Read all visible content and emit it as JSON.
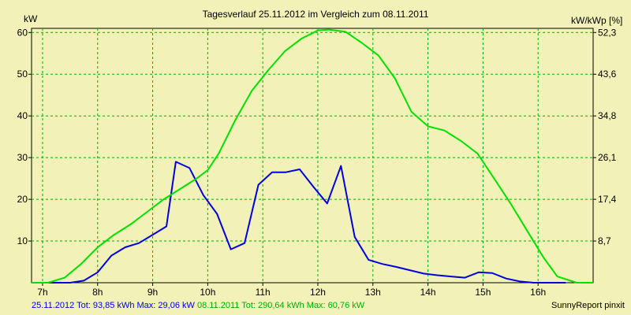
{
  "chart_data": {
    "type": "line",
    "title": "Tagesverlauf 25.11.2012 im Vergleich zum 08.11.2011",
    "y_left_label": "kW",
    "y_right_label": "kW/kWp [%]",
    "x_ticks": [
      "7h",
      "8h",
      "9h",
      "10h",
      "11h",
      "12h",
      "13h",
      "14h",
      "15h",
      "16h"
    ],
    "x_tick_values": [
      7,
      8,
      9,
      10,
      11,
      12,
      13,
      14,
      15,
      16
    ],
    "xlim": [
      6.8,
      17.0
    ],
    "ylim": [
      0,
      61
    ],
    "y_left_ticks": [
      10,
      20,
      30,
      40,
      50,
      60
    ],
    "y_right_ticks": [
      "8,7",
      "17,4",
      "26,1",
      "34,8",
      "43,6",
      "52,3"
    ],
    "y_right_tick_positions_kw": [
      10,
      20,
      30,
      40,
      50,
      60
    ],
    "grid": true,
    "series": [
      {
        "name": "25.11.2012",
        "color": "#0000dd",
        "points": [
          [
            7.0,
            0
          ],
          [
            7.25,
            0
          ],
          [
            7.5,
            0
          ],
          [
            7.75,
            0.5
          ],
          [
            8.0,
            2.5
          ],
          [
            8.25,
            6.5
          ],
          [
            8.5,
            8.5
          ],
          [
            8.75,
            9.5
          ],
          [
            9.0,
            11.5
          ],
          [
            9.25,
            13.5
          ],
          [
            9.42,
            29
          ],
          [
            9.67,
            27.5
          ],
          [
            9.92,
            21
          ],
          [
            10.17,
            16.5
          ],
          [
            10.42,
            8
          ],
          [
            10.67,
            9.5
          ],
          [
            10.92,
            23.5
          ],
          [
            11.17,
            26.5
          ],
          [
            11.42,
            26.5
          ],
          [
            11.67,
            27.2
          ],
          [
            11.92,
            23
          ],
          [
            12.17,
            19
          ],
          [
            12.42,
            28
          ],
          [
            12.67,
            11
          ],
          [
            12.92,
            5.5
          ],
          [
            13.17,
            4.5
          ],
          [
            13.42,
            3.8
          ],
          [
            13.67,
            3.0
          ],
          [
            13.92,
            2.2
          ],
          [
            14.17,
            1.8
          ],
          [
            14.42,
            1.5
          ],
          [
            14.67,
            1.2
          ],
          [
            14.92,
            2.5
          ],
          [
            15.17,
            2.3
          ],
          [
            15.42,
            1.0
          ],
          [
            15.67,
            0.3
          ],
          [
            15.92,
            0
          ],
          [
            16.5,
            0
          ]
        ]
      },
      {
        "name": "08.11.2011",
        "color": "#00e000",
        "points": [
          [
            6.8,
            0
          ],
          [
            7.1,
            0
          ],
          [
            7.4,
            1.2
          ],
          [
            7.7,
            4.5
          ],
          [
            8.0,
            8.5
          ],
          [
            8.3,
            11.5
          ],
          [
            8.6,
            14
          ],
          [
            8.9,
            17
          ],
          [
            9.2,
            20
          ],
          [
            9.5,
            22.5
          ],
          [
            9.8,
            25
          ],
          [
            10.0,
            27
          ],
          [
            10.2,
            31
          ],
          [
            10.5,
            39
          ],
          [
            10.8,
            46
          ],
          [
            11.1,
            51
          ],
          [
            11.4,
            55.5
          ],
          [
            11.7,
            58.5
          ],
          [
            12.0,
            60.5
          ],
          [
            12.2,
            60.7
          ],
          [
            12.5,
            60.2
          ],
          [
            12.8,
            57.5
          ],
          [
            13.1,
            54.5
          ],
          [
            13.4,
            49
          ],
          [
            13.7,
            41
          ],
          [
            14.0,
            37.5
          ],
          [
            14.3,
            36.5
          ],
          [
            14.6,
            34
          ],
          [
            14.9,
            31
          ],
          [
            15.2,
            25
          ],
          [
            15.5,
            19
          ],
          [
            15.8,
            12.5
          ],
          [
            16.1,
            6
          ],
          [
            16.35,
            1.5
          ],
          [
            16.7,
            0
          ],
          [
            17.0,
            0
          ]
        ]
      }
    ]
  },
  "footer": {
    "series1_text": "25.11.2012 Tot: 93,85 kWh Max: 29,06 kW",
    "series2_text": "08.11.2011 Tot: 290,64 kWh Max: 60,76 kW",
    "credit": "SunnyReport pinxit"
  }
}
